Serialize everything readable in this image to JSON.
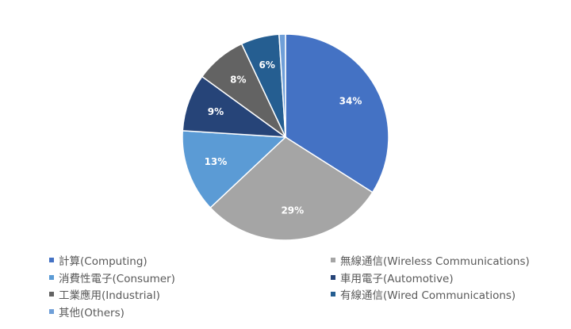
{
  "chart_data": {
    "type": "pie",
    "title": "",
    "slices": [
      {
        "name": "計算(Computing)",
        "value": 34,
        "label": "34%",
        "color": "#4472C4",
        "label_color": "#ffffff"
      },
      {
        "name": "無線通信(Wireless Communications)",
        "value": 29,
        "label": "29%",
        "color": "#A5A5A5",
        "label_color": "#ffffff"
      },
      {
        "name": "消費性電子(Consumer)",
        "value": 13,
        "label": "13%",
        "color": "#5B9BD5",
        "label_color": "#ffffff"
      },
      {
        "name": "車用電子(Automotive)",
        "value": 9,
        "label": "9%",
        "color": "#264478",
        "label_color": "#ffffff"
      },
      {
        "name": "工業應用(Industrial)",
        "value": 8,
        "label": "8%",
        "color": "#636363",
        "label_color": "#ffffff"
      },
      {
        "name": "有線通信(Wired Communications)",
        "value": 6,
        "label": "6%",
        "color": "#255E91",
        "label_color": "#ffffff"
      },
      {
        "name": "其他(Others)",
        "value": 1,
        "label": "",
        "color": "#6F9FD8",
        "label_color": "#ffffff"
      }
    ],
    "start_angle_deg": 0,
    "direction": "clockwise",
    "legend_position": "bottom",
    "legend_columns": 2
  }
}
